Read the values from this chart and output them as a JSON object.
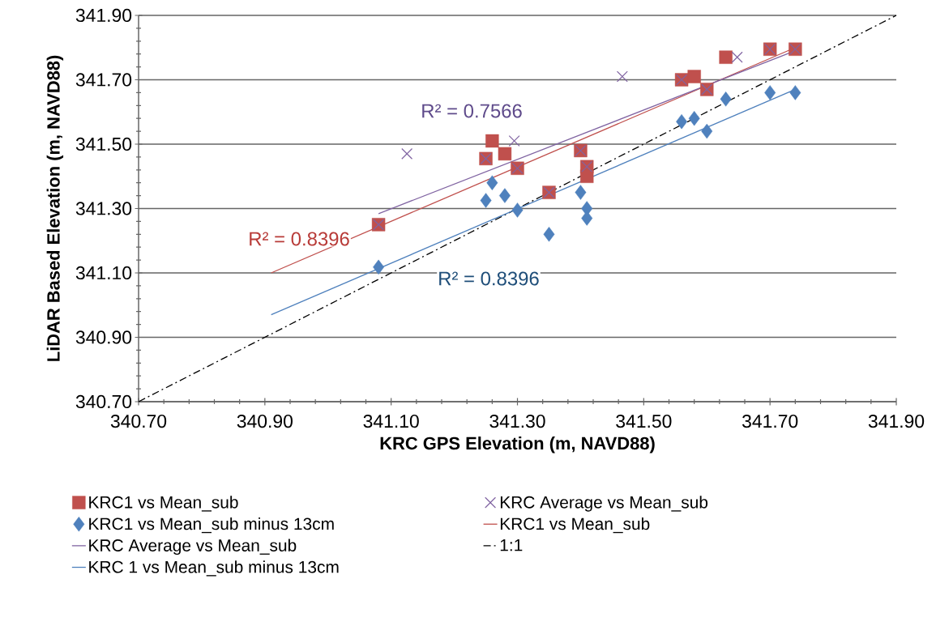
{
  "chart_data": {
    "type": "scatter",
    "xlabel": "KRC GPS Elevation (m, NAVD88)",
    "ylabel": "LiDAR Based Elevation (m, NAVD88)",
    "xlim": [
      340.7,
      341.9
    ],
    "ylim": [
      340.7,
      341.9
    ],
    "xticks": [
      {
        "value": 340.7,
        "label": "340.70"
      },
      {
        "value": 340.9,
        "label": "340.90"
      },
      {
        "value": 341.1,
        "label": "341.10"
      },
      {
        "value": 341.3,
        "label": "341.30"
      },
      {
        "value": 341.5,
        "label": "341.50"
      },
      {
        "value": 341.7,
        "label": "341.70"
      },
      {
        "value": 341.9,
        "label": "341.90"
      }
    ],
    "yticks": [
      {
        "value": 340.7,
        "label": "340.70"
      },
      {
        "value": 340.9,
        "label": "340.90"
      },
      {
        "value": 341.1,
        "label": "341.10"
      },
      {
        "value": 341.3,
        "label": "341.30"
      },
      {
        "value": 341.5,
        "label": "341.50"
      },
      {
        "value": 341.7,
        "label": "341.70"
      },
      {
        "value": 341.9,
        "label": "341.90"
      }
    ],
    "grid": "y",
    "legend": "bottom",
    "series": [
      {
        "name": "KRC1 vs Mean_sub",
        "marker": "square",
        "color": "#c0504d",
        "x": [
          341.08,
          341.25,
          341.26,
          341.28,
          341.3,
          341.35,
          341.4,
          341.41,
          341.41,
          341.56,
          341.58,
          341.6,
          341.63,
          341.7,
          341.74
        ],
        "values": [
          341.25,
          341.455,
          341.51,
          341.47,
          341.425,
          341.35,
          341.48,
          341.43,
          341.4,
          341.7,
          341.71,
          341.67,
          341.77,
          341.795,
          341.795
        ]
      },
      {
        "name": "KRC Average vs Mean_sub",
        "marker": "cross",
        "color": "#8064a2",
        "x": [
          341.08,
          341.125,
          341.25,
          341.295,
          341.3,
          341.35,
          341.4,
          341.41,
          341.466,
          341.56,
          341.6,
          341.648,
          341.7,
          341.74
        ],
        "values": [
          341.25,
          341.47,
          341.455,
          341.51,
          341.425,
          341.35,
          341.48,
          341.43,
          341.71,
          341.7,
          341.67,
          341.77,
          341.795,
          341.795
        ]
      },
      {
        "name": "KRC1 vs Mean_sub minus 13cm",
        "marker": "diamond",
        "color": "#4f81bd",
        "x": [
          341.08,
          341.25,
          341.26,
          341.28,
          341.3,
          341.35,
          341.4,
          341.41,
          341.41,
          341.56,
          341.58,
          341.6,
          341.63,
          341.7,
          341.74
        ],
        "values": [
          341.118,
          341.325,
          341.38,
          341.34,
          341.295,
          341.22,
          341.35,
          341.3,
          341.27,
          341.57,
          341.58,
          341.54,
          341.64,
          341.66,
          341.66
        ]
      },
      {
        "name": "KRC1 vs Mean_sub",
        "type": "line",
        "marker": "none",
        "line_style": "solid",
        "color": "#c0504d",
        "x": [
          340.91,
          341.74
        ],
        "values": [
          341.1,
          341.8
        ]
      },
      {
        "name": "KRC Average vs Mean_sub",
        "type": "line",
        "marker": "none",
        "line_style": "solid",
        "color": "#8064a2",
        "x": [
          341.08,
          341.74
        ],
        "values": [
          341.284,
          341.79
        ]
      },
      {
        "name": "1:1",
        "type": "line",
        "marker": "none",
        "line_style": "dashdot",
        "color": "#000000",
        "x": [
          340.7,
          341.9
        ],
        "values": [
          340.7,
          341.9
        ]
      },
      {
        "name": "KRC 1 vs Mean_sub minus 13cm",
        "type": "line",
        "marker": "none",
        "line_style": "solid",
        "color": "#4f81bd",
        "x": [
          340.91,
          341.74
        ],
        "values": [
          340.97,
          341.67
        ]
      }
    ],
    "annotations": [
      "R² = 0.7566",
      "R² = 0.8396",
      "R² = 0.8396"
    ]
  }
}
